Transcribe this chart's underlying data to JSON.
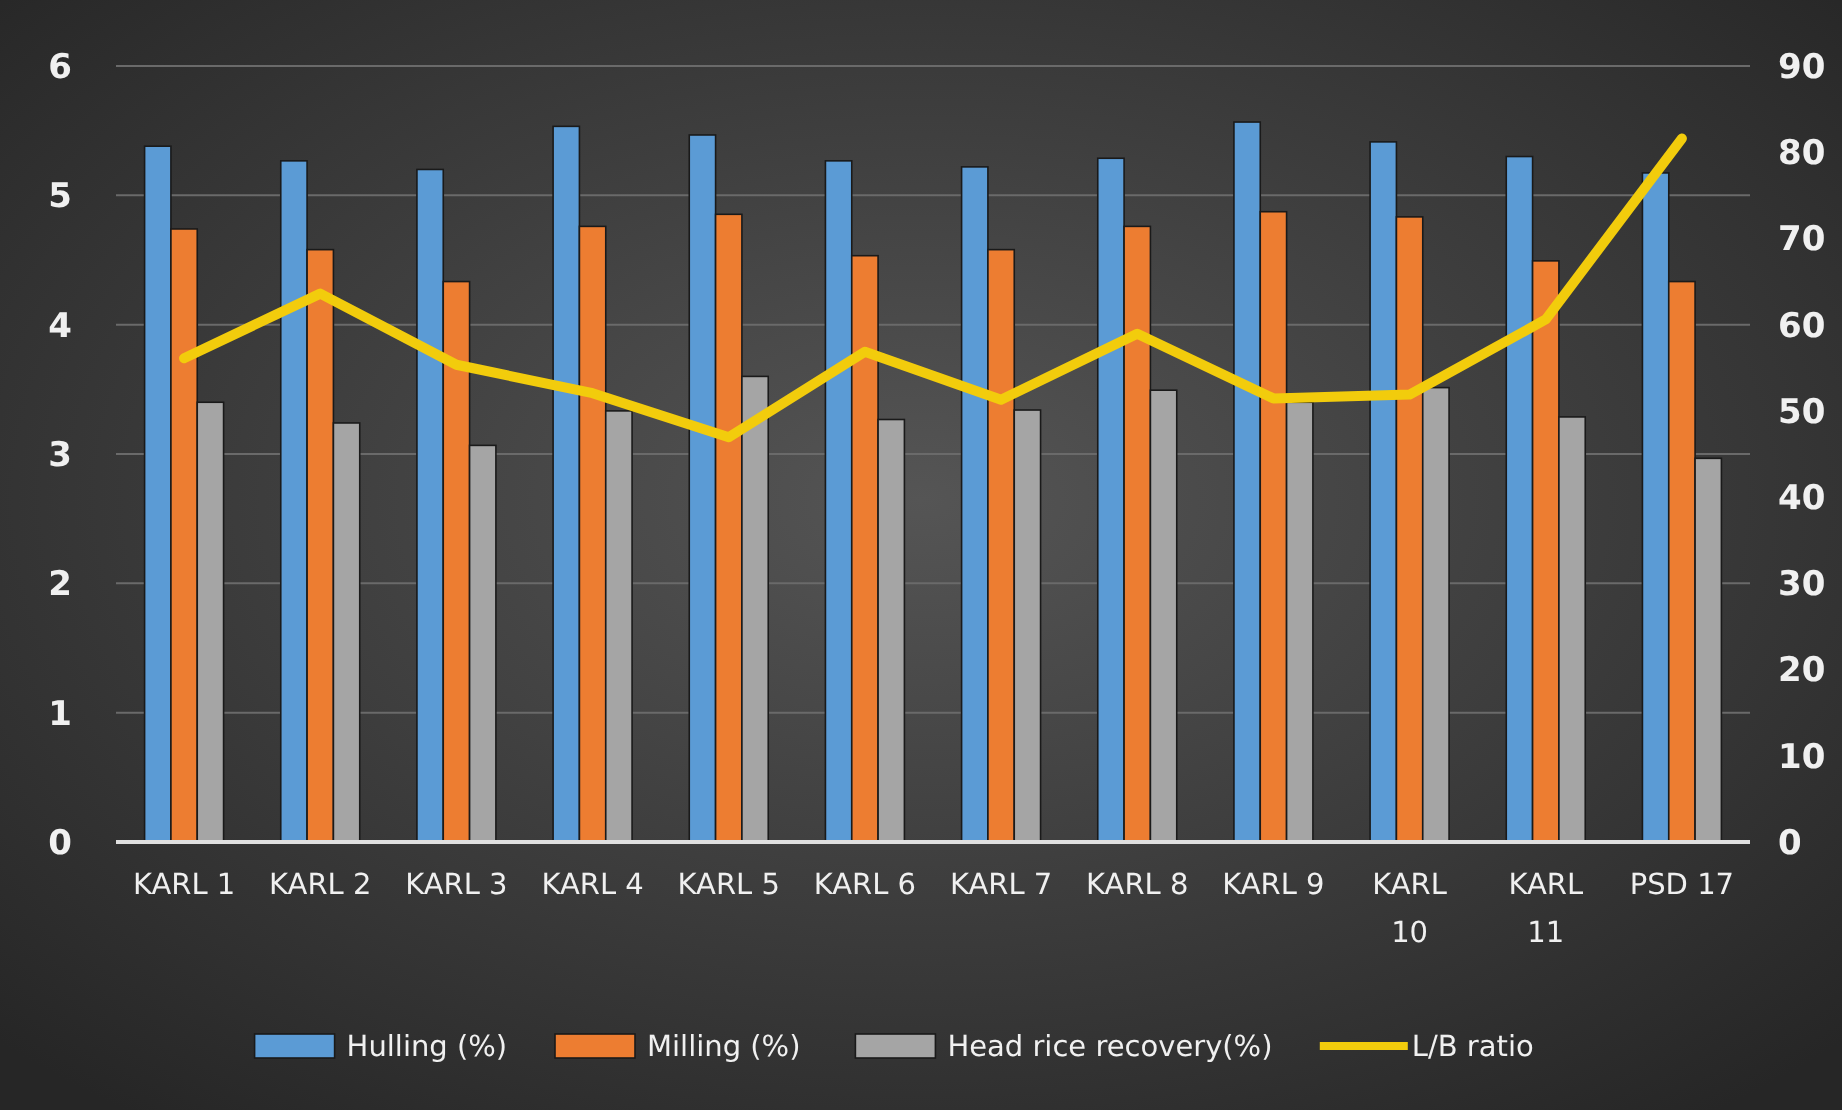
{
  "chart_data": {
    "type": "bar",
    "categories": [
      "KARL 1",
      "KARL 2",
      "KARL 3",
      "KARL 4",
      "KARL 5",
      "KARL 6",
      "KARL 7",
      "KARL 8",
      "KARL 9",
      "KARL 10",
      "KARL 11",
      "PSD 17"
    ],
    "series": [
      {
        "name": "Hulling (%)",
        "color": "#5b9bd5",
        "axis": "y2",
        "values": [
          80.7,
          79,
          78,
          83,
          82,
          79,
          78.3,
          79.3,
          83.5,
          81.2,
          79.5,
          77.6
        ]
      },
      {
        "name": "Milling (%)",
        "color": "#ed7d31",
        "axis": "y2",
        "values": [
          71.1,
          68.7,
          65,
          71.4,
          72.8,
          68,
          68.7,
          71.4,
          73.1,
          72.5,
          67.4,
          65
        ]
      },
      {
        "name": "Head rice recovery(%)",
        "color": "#a5a5a5",
        "axis": "y2",
        "values": [
          51,
          48.6,
          46,
          50,
          54,
          49,
          50.1,
          52.4,
          51,
          52.7,
          49.3,
          44.5
        ]
      },
      {
        "name": "L/B ratio",
        "color": "#f2cc0c",
        "type": "line",
        "values": [
          3.74,
          4.24,
          3.69,
          3.47,
          3.13,
          3.79,
          3.42,
          3.93,
          3.43,
          3.46,
          4.04,
          5.44
        ]
      }
    ],
    "ylim": [
      0,
      6
    ],
    "yticks": [
      0,
      1,
      2,
      3,
      4,
      5,
      6
    ],
    "y2lim": [
      0,
      90
    ],
    "y2ticks": [
      0,
      10,
      20,
      30,
      40,
      50,
      60,
      70,
      80,
      90
    ],
    "grid": "y",
    "legend": "bottom",
    "marker": "none"
  }
}
